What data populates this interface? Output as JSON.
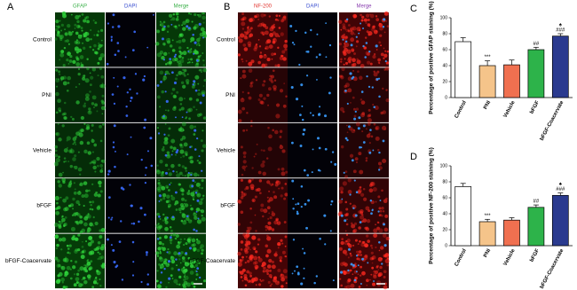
{
  "panels": [
    {
      "label": "A",
      "columns": [
        "GFAP",
        "DAPI",
        "Merge"
      ],
      "column_colors": [
        "#3cb04a",
        "#3a4fd0",
        "#3cb04a"
      ],
      "rows": [
        "Control",
        "PNI",
        "Vehicle",
        "bFGF",
        "bFGF-Coacervate"
      ]
    },
    {
      "label": "B",
      "columns": [
        "NF-200",
        "DAPI",
        "Merge"
      ],
      "column_colors": [
        "#e0302a",
        "#3a4fd0",
        "#8a3fb0"
      ],
      "rows": [
        "Control",
        "PNI",
        "Vehicle",
        "bFGF",
        "bFGF-Coacervate"
      ]
    }
  ],
  "chart_data": [
    {
      "type": "bar",
      "panel": "C",
      "ylabel": "Percentage of positive GFAP staining (%)",
      "categories": [
        "Control",
        "PNI",
        "Vehicle",
        "bFGF",
        "bFGF-Coacervate"
      ],
      "values": [
        70,
        40,
        41,
        60,
        77
      ],
      "errors": [
        5,
        6,
        6,
        3,
        3
      ],
      "colors": [
        "#ffffff",
        "#f5c48a",
        "#f07050",
        "#2db34a",
        "#2a3a8f"
      ],
      "significance": [
        null,
        "***",
        null,
        "##",
        "###"
      ],
      "symbol": [
        null,
        null,
        null,
        null,
        "♠"
      ],
      "ylim": [
        0,
        100
      ],
      "yticks": [
        0,
        20,
        40,
        60,
        80,
        100
      ]
    },
    {
      "type": "bar",
      "panel": "D",
      "ylabel": "Percentage of positive NF-200 staining (%)",
      "categories": [
        "Control",
        "PNI",
        "Vehicle",
        "bFGF",
        "bFGF-Coacervate"
      ],
      "values": [
        74,
        30,
        32,
        48,
        63
      ],
      "errors": [
        4,
        3,
        3,
        3,
        3
      ],
      "colors": [
        "#ffffff",
        "#f5c48a",
        "#f07050",
        "#2db34a",
        "#2a3a8f"
      ],
      "significance": [
        null,
        "***",
        null,
        "##",
        "###"
      ],
      "symbol": [
        null,
        null,
        null,
        null,
        "♠"
      ],
      "ylim": [
        0,
        100
      ],
      "yticks": [
        0,
        20,
        40,
        60,
        80,
        100
      ]
    }
  ]
}
